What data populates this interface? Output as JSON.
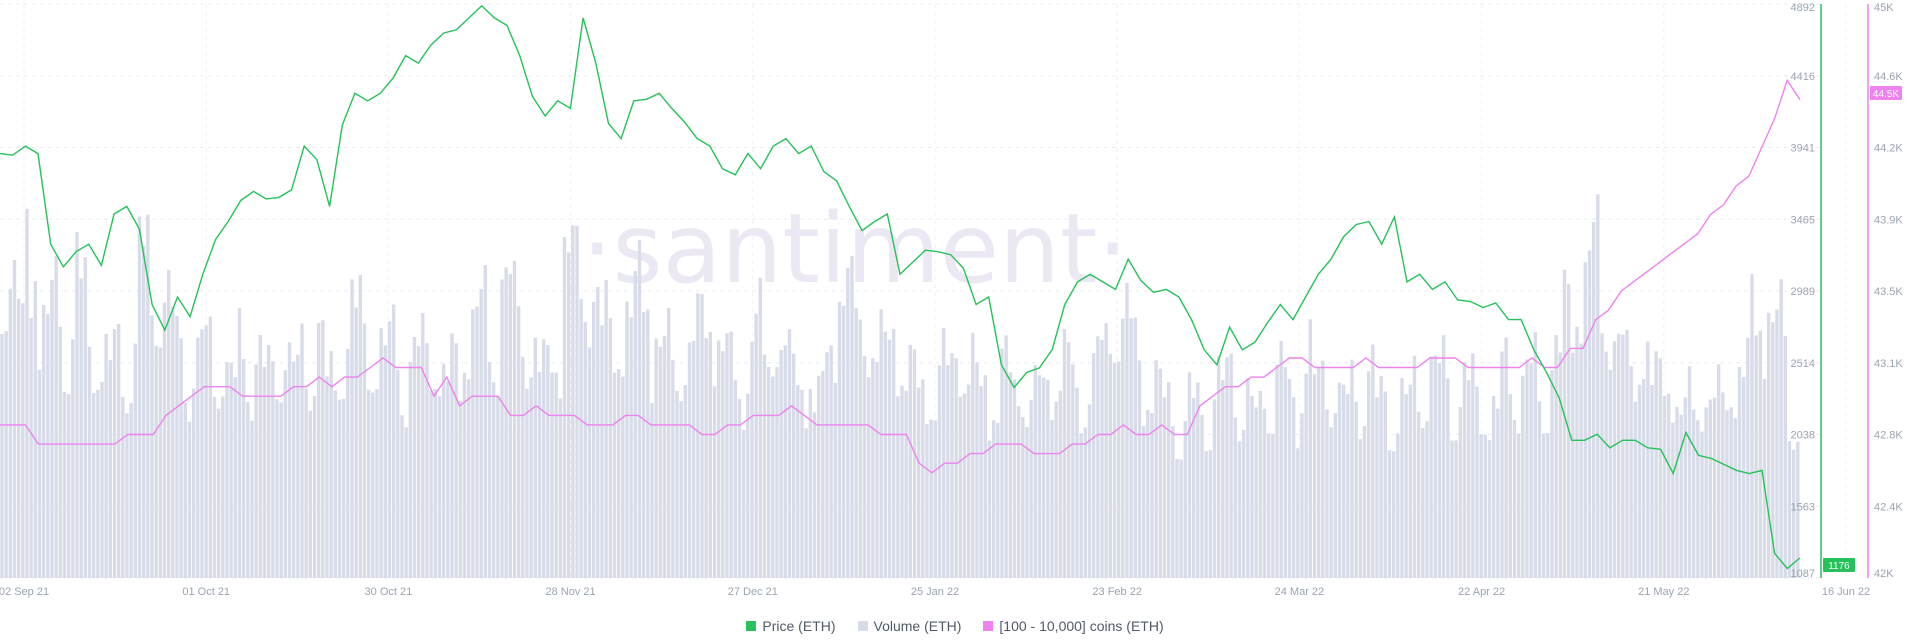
{
  "watermark": "·santiment·",
  "chart_data": {
    "type": "line",
    "x_ticks": [
      "02 Sep 21",
      "01 Oct 21",
      "30 Oct 21",
      "28 Nov 21",
      "27 Dec 21",
      "25 Jan 22",
      "23 Feb 22",
      "24 Mar 22",
      "22 Apr 22",
      "21 May 22",
      "16 Jun 22"
    ],
    "price_axis": {
      "ticks": [
        "4892",
        "4416",
        "3941",
        "3465",
        "2989",
        "2514",
        "2038",
        "1563",
        "1087"
      ],
      "ylim": [
        1087,
        4892
      ]
    },
    "holders_axis": {
      "ticks": [
        "45K",
        "44.6K",
        "44.2K",
        "43.9K",
        "43.5K",
        "43.1K",
        "42.8K",
        "42.4K",
        "42K"
      ],
      "ylim": [
        42000,
        45000
      ]
    },
    "price_label": "1176",
    "holders_label": "44.5K",
    "colors": {
      "price": "#26c15a",
      "volume": "#d8dbe8",
      "holders": "#ee82ee"
    },
    "series": [
      {
        "name": "Price (ETH)",
        "axis": "left",
        "values": [
          3900,
          3890,
          3950,
          3900,
          3300,
          3150,
          3250,
          3300,
          3160,
          3500,
          3550,
          3400,
          2900,
          2730,
          2950,
          2820,
          3100,
          3330,
          3450,
          3590,
          3650,
          3600,
          3610,
          3660,
          3950,
          3860,
          3550,
          4090,
          4300,
          4250,
          4300,
          4400,
          4550,
          4500,
          4620,
          4700,
          4720,
          4800,
          4880,
          4800,
          4750,
          4550,
          4280,
          4150,
          4250,
          4200,
          4800,
          4500,
          4100,
          4000,
          4250,
          4260,
          4300,
          4200,
          4110,
          4000,
          3950,
          3800,
          3760,
          3900,
          3800,
          3950,
          4000,
          3900,
          3950,
          3780,
          3720,
          3550,
          3390,
          3450,
          3500,
          3100,
          3180,
          3260,
          3250,
          3230,
          3140,
          2900,
          2950,
          2500,
          2350,
          2450,
          2480,
          2600,
          2900,
          3050,
          3100,
          3050,
          3000,
          3200,
          3060,
          2980,
          3000,
          2950,
          2800,
          2600,
          2500,
          2750,
          2600,
          2650,
          2780,
          2900,
          2800,
          2950,
          3100,
          3200,
          3350,
          3430,
          3450,
          3300,
          3480,
          3050,
          3100,
          3000,
          3050,
          2930,
          2920,
          2880,
          2910,
          2800,
          2800,
          2600,
          2450,
          2280,
          2000,
          2000,
          2040,
          1950,
          2000,
          2000,
          1950,
          1940,
          1780,
          2050,
          1900,
          1880,
          1840,
          1800,
          1780,
          1800,
          1250,
          1150,
          1220
        ]
      },
      {
        "name": "[100 - 10,000] coins (ETH)",
        "axis": "right",
        "values": [
          42800,
          42800,
          42800,
          42700,
          42700,
          42700,
          42700,
          42700,
          42700,
          42700,
          42750,
          42750,
          42750,
          42850,
          42900,
          42950,
          43000,
          43000,
          43000,
          42950,
          42950,
          42950,
          42950,
          43000,
          43000,
          43050,
          43000,
          43050,
          43050,
          43100,
          43150,
          43100,
          43100,
          43100,
          42950,
          43050,
          42900,
          42950,
          42950,
          42950,
          42850,
          42850,
          42900,
          42850,
          42850,
          42850,
          42800,
          42800,
          42800,
          42850,
          42850,
          42800,
          42800,
          42800,
          42800,
          42750,
          42750,
          42800,
          42800,
          42850,
          42850,
          42850,
          42900,
          42850,
          42800,
          42800,
          42800,
          42800,
          42800,
          42750,
          42750,
          42750,
          42600,
          42550,
          42600,
          42600,
          42650,
          42650,
          42700,
          42700,
          42700,
          42650,
          42650,
          42650,
          42700,
          42700,
          42750,
          42750,
          42800,
          42750,
          42750,
          42800,
          42750,
          42750,
          42900,
          42950,
          43000,
          43000,
          43050,
          43050,
          43100,
          43150,
          43150,
          43100,
          43100,
          43100,
          43100,
          43150,
          43100,
          43100,
          43100,
          43100,
          43150,
          43150,
          43150,
          43100,
          43100,
          43100,
          43100,
          43100,
          43150,
          43100,
          43100,
          43200,
          43200,
          43350,
          43400,
          43500,
          43550,
          43600,
          43650,
          43700,
          43750,
          43800,
          43900,
          43950,
          44050,
          44100,
          44250,
          44400,
          44600,
          44500
        ]
      },
      {
        "name": "Volume (ETH)",
        "axis": "hidden",
        "values": [
          0.5,
          0.45,
          0.6,
          0.4,
          0.5,
          0.38,
          0.5,
          0.4,
          0.35,
          0.4,
          0.35,
          0.55,
          0.5,
          0.45,
          0.4,
          0.35,
          0.4,
          0.38,
          0.33,
          0.4,
          0.36,
          0.35,
          0.4,
          0.35,
          0.38,
          0.4,
          0.33,
          0.4,
          0.45,
          0.4,
          0.38,
          0.4,
          0.35,
          0.38,
          0.4,
          0.33,
          0.36,
          0.42,
          0.45,
          0.4,
          0.5,
          0.45,
          0.38,
          0.35,
          0.4,
          0.55,
          0.5,
          0.48,
          0.42,
          0.4,
          0.45,
          0.5,
          0.4,
          0.38,
          0.35,
          0.4,
          0.45,
          0.4,
          0.36,
          0.32,
          0.42,
          0.38,
          0.4,
          0.35,
          0.33,
          0.3,
          0.4,
          0.5,
          0.45,
          0.4,
          0.38,
          0.42,
          0.35,
          0.33,
          0.3,
          0.35,
          0.38,
          0.35,
          0.33,
          0.3,
          0.35,
          0.32,
          0.3,
          0.33,
          0.35,
          0.36,
          0.3,
          0.35,
          0.4,
          0.45,
          0.42,
          0.35,
          0.32,
          0.3,
          0.25,
          0.3,
          0.28,
          0.32,
          0.35,
          0.3,
          0.28,
          0.32,
          0.35,
          0.3,
          0.38,
          0.33,
          0.35,
          0.3,
          0.32,
          0.35,
          0.3,
          0.28,
          0.3,
          0.33,
          0.35,
          0.35,
          0.3,
          0.33,
          0.3,
          0.28,
          0.35,
          0.33,
          0.35,
          0.3,
          0.38,
          0.45,
          0.5,
          0.55,
          0.45,
          0.4,
          0.35,
          0.38,
          0.33,
          0.35,
          0.28,
          0.3,
          0.3,
          0.3,
          0.32,
          0.35,
          0.45,
          0.45,
          0.42,
          0.25
        ]
      }
    ],
    "legend": [
      "Price (ETH)",
      "Volume (ETH)",
      "[100 - 10,000] coins (ETH)"
    ]
  }
}
